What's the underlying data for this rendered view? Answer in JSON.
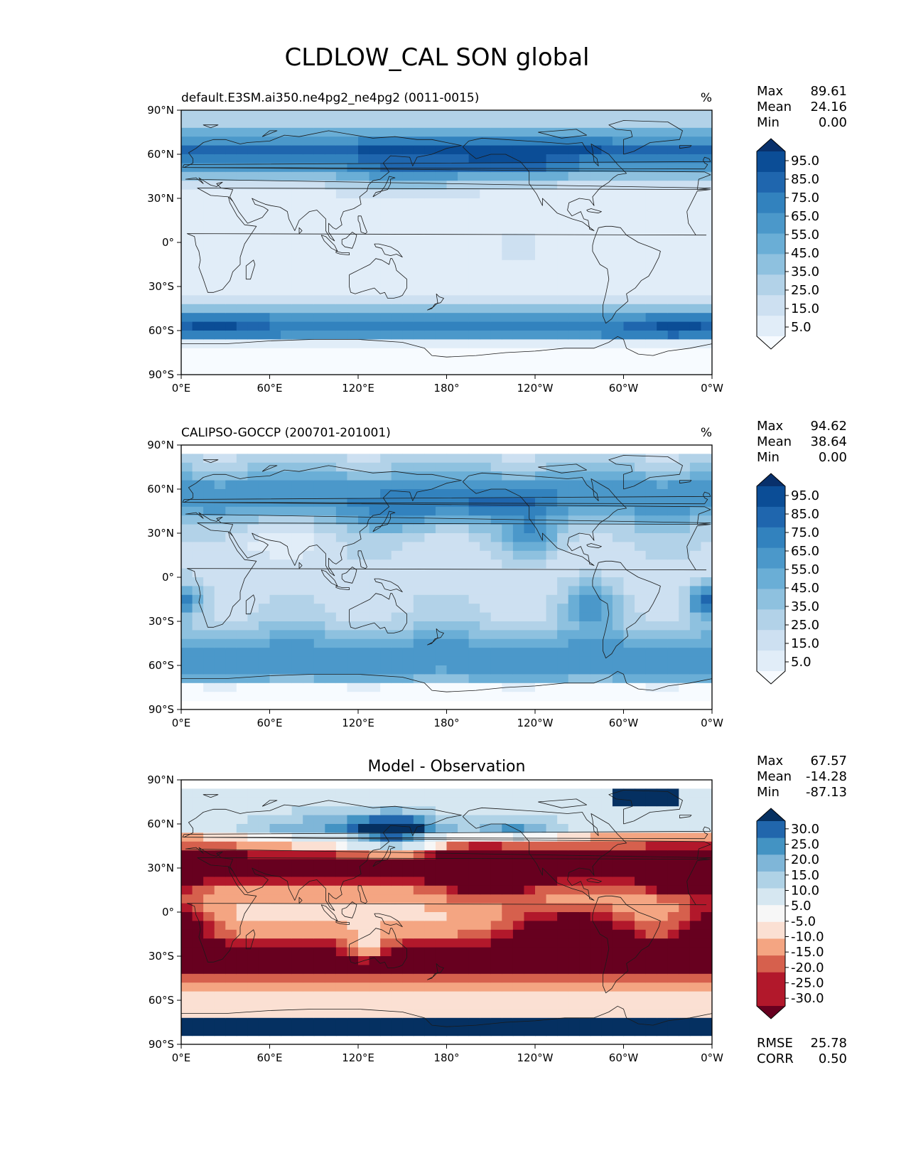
{
  "figure": {
    "title": "CLDLOW_CAL SON global"
  },
  "axes": {
    "xticks": [
      "0°E",
      "60°E",
      "120°E",
      "180°",
      "120°W",
      "60°W",
      "0°W"
    ],
    "yticks": [
      "90°N",
      "60°N",
      "30°N",
      "0°",
      "30°S",
      "60°S",
      "90°S"
    ]
  },
  "panels": [
    {
      "id": "test",
      "title_left": "default.E3SM.ai350.ne4pg2_ne4pg2 (0011-0015)",
      "title_center": "",
      "units": "%",
      "stats": [
        {
          "label": "Max",
          "value": "89.61"
        },
        {
          "label": "Mean",
          "value": "24.16"
        },
        {
          "label": "Min",
          "value": "0.00"
        }
      ],
      "footer_stats": [],
      "colorbar": {
        "labels": [
          "95.0",
          "85.0",
          "75.0",
          "65.0",
          "55.0",
          "45.0",
          "35.0",
          "25.0",
          "15.0",
          "5.0"
        ],
        "colors": [
          "#08306b",
          "#0b4d96",
          "#1f66ae",
          "#3282be",
          "#4b98ca",
          "#6aaed6",
          "#8ec1df",
          "#b2d2e8",
          "#cde0f1",
          "#e1edf8",
          "#f7fbff"
        ]
      }
    },
    {
      "id": "reference",
      "title_left": "CALIPSO-GOCCP (200701-201001)",
      "title_center": "",
      "units": "%",
      "stats": [
        {
          "label": "Max",
          "value": "94.62"
        },
        {
          "label": "Mean",
          "value": "38.64"
        },
        {
          "label": "Min",
          "value": "0.00"
        }
      ],
      "footer_stats": [],
      "colorbar": {
        "labels": [
          "95.0",
          "85.0",
          "75.0",
          "65.0",
          "55.0",
          "45.0",
          "35.0",
          "25.0",
          "15.0",
          "5.0"
        ],
        "colors": [
          "#08306b",
          "#0b4d96",
          "#1f66ae",
          "#3282be",
          "#4b98ca",
          "#6aaed6",
          "#8ec1df",
          "#b2d2e8",
          "#cde0f1",
          "#e1edf8",
          "#f7fbff"
        ]
      }
    },
    {
      "id": "diff",
      "title_left": "",
      "title_center": "Model - Observation",
      "units": "",
      "stats": [
        {
          "label": "Max",
          "value": "67.57"
        },
        {
          "label": "Mean",
          "value": "-14.28"
        },
        {
          "label": "Min",
          "value": "-87.13"
        }
      ],
      "footer_stats": [
        {
          "label": "RMSE",
          "value": "25.78"
        },
        {
          "label": "CORR",
          "value": "0.50"
        }
      ],
      "colorbar": {
        "labels": [
          "30.0",
          "25.0",
          "20.0",
          "15.0",
          "10.0",
          "5.0",
          "-5.0",
          "-10.0",
          "-15.0",
          "-20.0",
          "-25.0",
          "-30.0"
        ],
        "colors": [
          "#053061",
          "#2166ac",
          "#4393c3",
          "#7fb6d8",
          "#afd2e6",
          "#d6e7f1",
          "#f7f7f7",
          "#fbe0d3",
          "#f4a582",
          "#d6604d",
          "#b2182b",
          "#b2182b",
          "#67001f"
        ]
      }
    }
  ],
  "colors": {
    "coast": "#1a1a1a",
    "blues": [
      "#f7fbff",
      "#e1edf8",
      "#cde0f1",
      "#b2d2e8",
      "#8ec1df",
      "#6aaed6",
      "#4b98ca",
      "#3282be",
      "#1f66ae",
      "#0b4d96",
      "#08306b"
    ],
    "rdbu": [
      "#67001f",
      "#b2182b",
      "#d6604d",
      "#f4a582",
      "#fbe0d3",
      "#f7f7f7",
      "#d6e7f1",
      "#afd2e6",
      "#7fb6d8",
      "#4393c3",
      "#2166ac",
      "#053061"
    ]
  }
}
